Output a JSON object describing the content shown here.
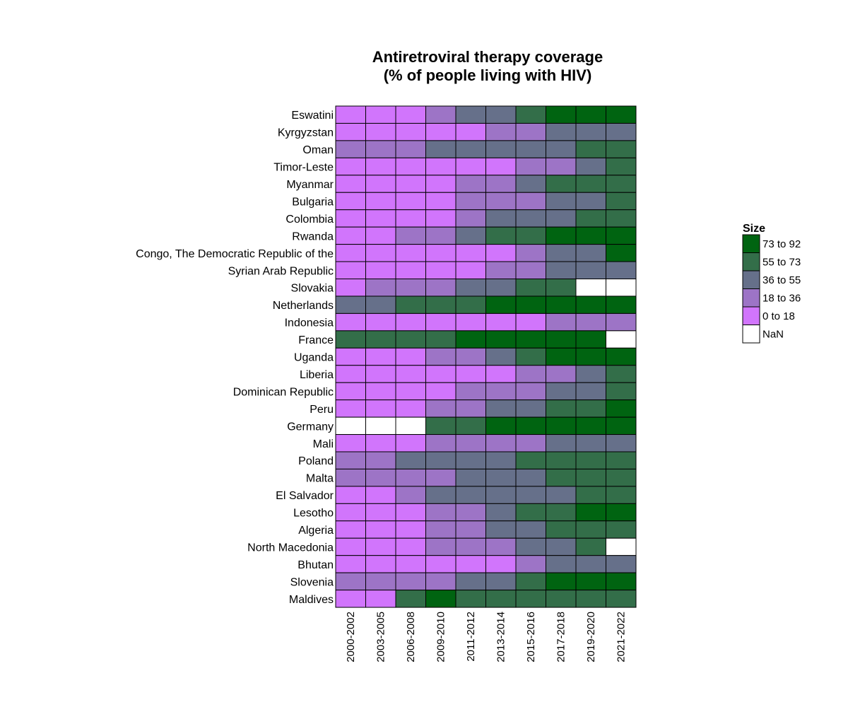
{
  "chart_data": {
    "type": "heatmap",
    "title": "Antiretroviral therapy coverage",
    "subtitle": "(% of people living with HIV)",
    "columns": [
      "2000-2002",
      "2003-2005",
      "2006-2008",
      "2009-2010",
      "2011-2012",
      "2013-2014",
      "2015-2016",
      "2017-2018",
      "2019-2020",
      "2021-2022"
    ],
    "rows": [
      "Eswatini",
      "Kyrgyzstan",
      "Oman",
      "Timor-Leste",
      "Myanmar",
      "Bulgaria",
      "Colombia",
      "Rwanda",
      "Congo, The Democratic Republic of the",
      "Syrian Arab Republic",
      "Slovakia",
      "Netherlands",
      "Indonesia",
      "France",
      "Uganda",
      "Liberia",
      "Dominican Republic",
      "Peru",
      "Germany",
      "Mali",
      "Poland",
      "Malta",
      "El Salvador",
      "Lesotho",
      "Algeria",
      "North Macedonia",
      "Bhutan",
      "Slovenia",
      "Maldives"
    ],
    "bins": [
      {
        "label": "73 to 92",
        "color": "#006411"
      },
      {
        "label": "55 to 73",
        "color": "#336E49"
      },
      {
        "label": "36 to 55",
        "color": "#66708A"
      },
      {
        "label": "18 to 36",
        "color": "#9D74C6"
      },
      {
        "label": "0 to 18",
        "color": "#D175FC"
      },
      {
        "label": "NaN",
        "color": "#FFFFFF"
      }
    ],
    "values": [
      [
        "0 to 18",
        "0 to 18",
        "0 to 18",
        "18 to 36",
        "36 to 55",
        "36 to 55",
        "55 to 73",
        "73 to 92",
        "73 to 92",
        "73 to 92"
      ],
      [
        "0 to 18",
        "0 to 18",
        "0 to 18",
        "0 to 18",
        "0 to 18",
        "18 to 36",
        "18 to 36",
        "36 to 55",
        "36 to 55",
        "36 to 55"
      ],
      [
        "18 to 36",
        "18 to 36",
        "18 to 36",
        "36 to 55",
        "36 to 55",
        "36 to 55",
        "36 to 55",
        "36 to 55",
        "55 to 73",
        "55 to 73"
      ],
      [
        "0 to 18",
        "0 to 18",
        "0 to 18",
        "0 to 18",
        "0 to 18",
        "0 to 18",
        "18 to 36",
        "18 to 36",
        "36 to 55",
        "55 to 73"
      ],
      [
        "0 to 18",
        "0 to 18",
        "0 to 18",
        "0 to 18",
        "18 to 36",
        "18 to 36",
        "36 to 55",
        "55 to 73",
        "55 to 73",
        "55 to 73"
      ],
      [
        "0 to 18",
        "0 to 18",
        "0 to 18",
        "0 to 18",
        "18 to 36",
        "18 to 36",
        "18 to 36",
        "36 to 55",
        "36 to 55",
        "55 to 73"
      ],
      [
        "0 to 18",
        "0 to 18",
        "0 to 18",
        "0 to 18",
        "18 to 36",
        "36 to 55",
        "36 to 55",
        "36 to 55",
        "55 to 73",
        "55 to 73"
      ],
      [
        "0 to 18",
        "0 to 18",
        "18 to 36",
        "18 to 36",
        "36 to 55",
        "55 to 73",
        "55 to 73",
        "73 to 92",
        "73 to 92",
        "73 to 92"
      ],
      [
        "0 to 18",
        "0 to 18",
        "0 to 18",
        "0 to 18",
        "0 to 18",
        "0 to 18",
        "18 to 36",
        "36 to 55",
        "36 to 55",
        "73 to 92"
      ],
      [
        "0 to 18",
        "0 to 18",
        "0 to 18",
        "0 to 18",
        "0 to 18",
        "18 to 36",
        "18 to 36",
        "36 to 55",
        "36 to 55",
        "36 to 55"
      ],
      [
        "0 to 18",
        "18 to 36",
        "18 to 36",
        "18 to 36",
        "36 to 55",
        "36 to 55",
        "55 to 73",
        "55 to 73",
        "NaN",
        "NaN"
      ],
      [
        "36 to 55",
        "36 to 55",
        "55 to 73",
        "55 to 73",
        "55 to 73",
        "73 to 92",
        "73 to 92",
        "73 to 92",
        "73 to 92",
        "73 to 92"
      ],
      [
        "0 to 18",
        "0 to 18",
        "0 to 18",
        "0 to 18",
        "0 to 18",
        "0 to 18",
        "0 to 18",
        "18 to 36",
        "18 to 36",
        "18 to 36"
      ],
      [
        "55 to 73",
        "55 to 73",
        "55 to 73",
        "55 to 73",
        "73 to 92",
        "73 to 92",
        "73 to 92",
        "73 to 92",
        "73 to 92",
        "NaN"
      ],
      [
        "0 to 18",
        "0 to 18",
        "0 to 18",
        "18 to 36",
        "18 to 36",
        "36 to 55",
        "55 to 73",
        "73 to 92",
        "73 to 92",
        "73 to 92"
      ],
      [
        "0 to 18",
        "0 to 18",
        "0 to 18",
        "0 to 18",
        "0 to 18",
        "0 to 18",
        "18 to 36",
        "18 to 36",
        "36 to 55",
        "55 to 73"
      ],
      [
        "0 to 18",
        "0 to 18",
        "0 to 18",
        "0 to 18",
        "18 to 36",
        "18 to 36",
        "18 to 36",
        "36 to 55",
        "36 to 55",
        "55 to 73"
      ],
      [
        "0 to 18",
        "0 to 18",
        "0 to 18",
        "18 to 36",
        "18 to 36",
        "36 to 55",
        "36 to 55",
        "55 to 73",
        "55 to 73",
        "73 to 92"
      ],
      [
        "NaN",
        "NaN",
        "NaN",
        "55 to 73",
        "55 to 73",
        "73 to 92",
        "73 to 92",
        "73 to 92",
        "73 to 92",
        "73 to 92"
      ],
      [
        "0 to 18",
        "0 to 18",
        "0 to 18",
        "18 to 36",
        "18 to 36",
        "18 to 36",
        "18 to 36",
        "36 to 55",
        "36 to 55",
        "36 to 55"
      ],
      [
        "18 to 36",
        "18 to 36",
        "36 to 55",
        "36 to 55",
        "36 to 55",
        "36 to 55",
        "55 to 73",
        "55 to 73",
        "55 to 73",
        "55 to 73"
      ],
      [
        "18 to 36",
        "18 to 36",
        "18 to 36",
        "18 to 36",
        "36 to 55",
        "36 to 55",
        "36 to 55",
        "55 to 73",
        "55 to 73",
        "55 to 73"
      ],
      [
        "0 to 18",
        "0 to 18",
        "18 to 36",
        "36 to 55",
        "36 to 55",
        "36 to 55",
        "36 to 55",
        "36 to 55",
        "55 to 73",
        "55 to 73"
      ],
      [
        "0 to 18",
        "0 to 18",
        "0 to 18",
        "18 to 36",
        "18 to 36",
        "36 to 55",
        "55 to 73",
        "55 to 73",
        "73 to 92",
        "73 to 92"
      ],
      [
        "0 to 18",
        "0 to 18",
        "0 to 18",
        "18 to 36",
        "18 to 36",
        "36 to 55",
        "36 to 55",
        "55 to 73",
        "55 to 73",
        "55 to 73"
      ],
      [
        "0 to 18",
        "0 to 18",
        "0 to 18",
        "18 to 36",
        "18 to 36",
        "18 to 36",
        "36 to 55",
        "36 to 55",
        "55 to 73",
        "NaN"
      ],
      [
        "0 to 18",
        "0 to 18",
        "0 to 18",
        "0 to 18",
        "0 to 18",
        "0 to 18",
        "18 to 36",
        "36 to 55",
        "36 to 55",
        "36 to 55"
      ],
      [
        "18 to 36",
        "18 to 36",
        "18 to 36",
        "18 to 36",
        "36 to 55",
        "36 to 55",
        "55 to 73",
        "73 to 92",
        "73 to 92",
        "73 to 92"
      ],
      [
        "0 to 18",
        "0 to 18",
        "55 to 73",
        "73 to 92",
        "55 to 73",
        "55 to 73",
        "55 to 73",
        "55 to 73",
        "55 to 73",
        "55 to 73"
      ]
    ],
    "legend": {
      "title": "Size",
      "position": "right"
    },
    "grid": false
  }
}
